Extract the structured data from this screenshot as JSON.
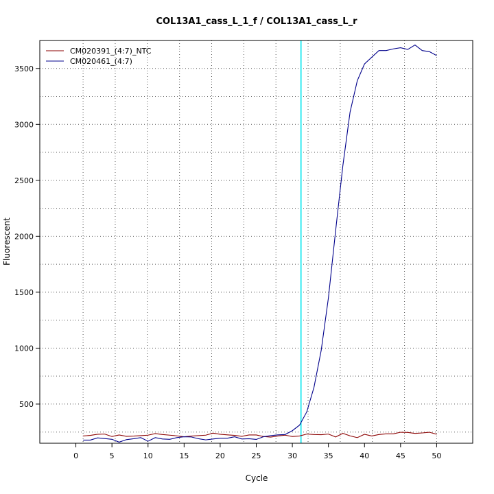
{
  "chart_data": {
    "type": "line",
    "title": "COL13A1_cass_L_1_f / COL13A1_cass_L_r",
    "xlabel": "Cycle",
    "ylabel": "Fluorescent",
    "xlim": [
      -5,
      55
    ],
    "ylim": [
      150,
      3750
    ],
    "x_ticks": [
      0,
      5,
      10,
      15,
      20,
      25,
      30,
      35,
      40,
      45,
      50
    ],
    "y_ticks": [
      500,
      1000,
      1500,
      2000,
      2500,
      3000,
      3500
    ],
    "legend_position": "top-left",
    "grid": "dotted",
    "threshold_cycle": 31.2,
    "threshold_color": "#00e5ee",
    "x": [
      1,
      2,
      3,
      4,
      5,
      6,
      7,
      8,
      9,
      10,
      11,
      12,
      13,
      14,
      15,
      16,
      17,
      18,
      19,
      20,
      21,
      22,
      23,
      24,
      25,
      26,
      27,
      28,
      29,
      30,
      31,
      32,
      33,
      34,
      35,
      36,
      37,
      38,
      39,
      40,
      41,
      42,
      43,
      44,
      45,
      46,
      47,
      48,
      49,
      50
    ],
    "series": [
      {
        "name": "CM020391_(4:7)_NTC",
        "color": "#8b0000",
        "values": [
          215,
          220,
          230,
          232,
          210,
          224,
          212,
          214,
          218,
          222,
          236,
          228,
          222,
          216,
          208,
          214,
          218,
          222,
          240,
          230,
          225,
          220,
          212,
          224,
          224,
          210,
          205,
          215,
          222,
          210,
          215,
          232,
          228,
          226,
          232,
          206,
          238,
          216,
          200,
          230,
          215,
          228,
          234,
          234,
          248,
          246,
          238,
          242,
          248,
          230
        ]
      },
      {
        "name": "CM020461_(4:7)",
        "color": "#00008b",
        "values": [
          178,
          178,
          198,
          192,
          185,
          160,
          182,
          190,
          200,
          168,
          200,
          188,
          185,
          200,
          208,
          206,
          190,
          180,
          188,
          195,
          195,
          208,
          188,
          190,
          184,
          208,
          218,
          225,
          228,
          262,
          312,
          430,
          650,
          980,
          1450,
          2050,
          2630,
          3110,
          3390,
          3540,
          3600,
          3660,
          3660,
          3675,
          3685,
          3670,
          3710,
          3660,
          3650,
          3615
        ]
      }
    ]
  }
}
